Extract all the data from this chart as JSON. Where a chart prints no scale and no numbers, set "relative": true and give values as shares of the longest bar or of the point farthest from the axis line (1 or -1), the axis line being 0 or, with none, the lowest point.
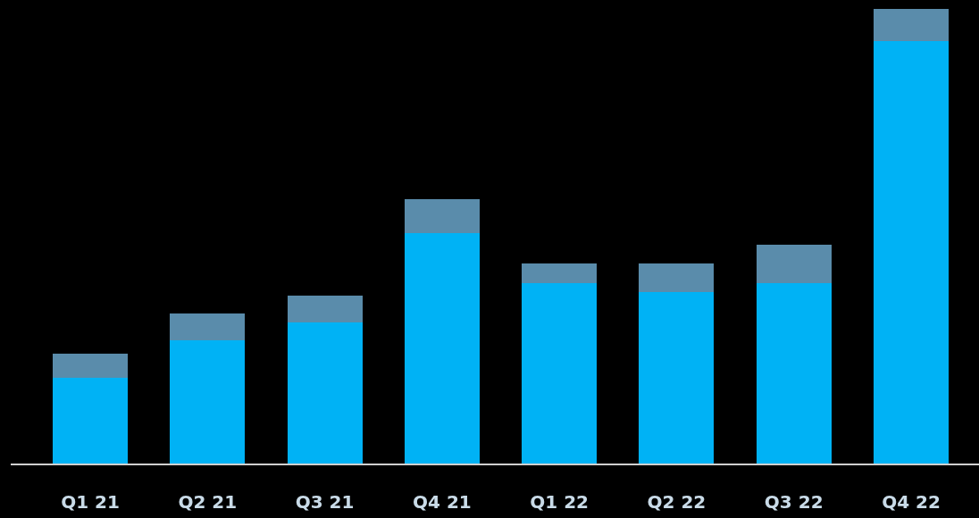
{
  "chart_data": {
    "type": "bar",
    "relative": true,
    "stacked": true,
    "categories": [
      "Q1 21",
      "Q2 21",
      "Q3 21",
      "Q4 21",
      "Q1 22",
      "Q2 22",
      "Q3 22",
      "Q4 22"
    ],
    "series": [
      {
        "color": "#00b2f5",
        "values": [
          0.189,
          0.271,
          0.31,
          0.507,
          0.397,
          0.377,
          0.397,
          0.929
        ]
      },
      {
        "color": "#5a8cab",
        "values": [
          0.053,
          0.059,
          0.059,
          0.075,
          0.043,
          0.063,
          0.084,
          0.071
        ]
      }
    ]
  }
}
